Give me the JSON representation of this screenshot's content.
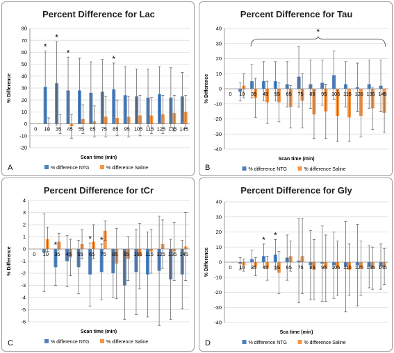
{
  "colors": {
    "ntg": "#4f81bd",
    "saline": "#f79646",
    "grid": "#d9d9d9",
    "axis": "#808080",
    "error_bar": "#595959"
  },
  "chart_data": [
    {
      "panel": "A",
      "type": "bar",
      "title": "Percent Difference for Lac",
      "xlabel": "Scan time (min)",
      "ylabel": "% Difference",
      "ylim": [
        -20,
        80
      ],
      "yticks": [
        -20,
        -10,
        0,
        10,
        20,
        30,
        40,
        50,
        60,
        70,
        80
      ],
      "grid": true,
      "legend_position": "bottom",
      "categories": [
        "0",
        "10",
        "35",
        "45",
        "55",
        "65",
        "75",
        "85",
        "95",
        "105",
        "115",
        "125",
        "135",
        "145"
      ],
      "series": [
        {
          "name": "% difference NTG",
          "values": [
            null,
            31,
            34,
            28,
            28,
            26,
            27,
            29,
            24,
            23,
            22,
            25,
            22,
            23
          ],
          "errors": [
            null,
            30,
            35,
            28,
            27,
            26,
            27,
            22,
            24,
            23,
            24,
            23,
            25,
            20
          ]
        },
        {
          "name": "% difference Saline",
          "values": [
            null,
            0,
            0,
            -2,
            4,
            2,
            6,
            5,
            6,
            7,
            7,
            8,
            9,
            10
          ],
          "errors": [
            null,
            5,
            8,
            10,
            12,
            13,
            17,
            15,
            17,
            17,
            15,
            16,
            15,
            14
          ]
        }
      ],
      "significance": [
        "10",
        "35",
        "45",
        "85"
      ]
    },
    {
      "panel": "B",
      "type": "bar",
      "title": "Percent Difference for Tau",
      "xlabel": "Scan time (min)",
      "ylabel": "% Difference",
      "ylim": [
        -40,
        40
      ],
      "yticks": [
        -40,
        -30,
        -20,
        -10,
        0,
        10,
        20,
        30,
        40
      ],
      "grid": true,
      "legend_position": "bottom",
      "categories": [
        "0",
        "10",
        "35",
        "45",
        "55",
        "65",
        "75",
        "85",
        "95",
        "105",
        "115",
        "125",
        "135",
        "145"
      ],
      "series": [
        {
          "name": "% difference NTG",
          "values": [
            null,
            -2,
            5,
            5,
            5,
            3,
            8,
            3,
            4,
            9,
            3,
            1,
            3,
            2
          ],
          "errors": [
            null,
            6,
            11,
            13,
            13,
            15,
            20,
            16,
            15,
            16,
            15,
            16,
            16,
            17
          ]
        },
        {
          "name": "% difference Saline",
          "values": [
            null,
            2,
            -6,
            -9,
            -9,
            -12,
            -8,
            -17,
            -15,
            -18,
            -19,
            -18,
            -13,
            -16
          ],
          "errors": [
            null,
            8,
            13,
            14,
            13,
            14,
            18,
            16,
            18,
            17,
            16,
            14,
            14,
            13
          ]
        }
      ],
      "bracket_span": [
        "35",
        "145"
      ],
      "significance_label": "*"
    },
    {
      "panel": "C",
      "type": "bar",
      "title": "Percent Difference for tCr",
      "xlabel": "Scan time (min)",
      "ylabel": "% Difference",
      "ylim": [
        -6,
        4
      ],
      "yticks": [
        -6,
        -5,
        -4,
        -3,
        -2,
        -1,
        0,
        1,
        2,
        3,
        4
      ],
      "grid": true,
      "legend_position": "bottom",
      "categories": [
        "0",
        "10",
        "35",
        "45",
        "55",
        "65",
        "75",
        "85",
        "95",
        "105",
        "115",
        "125",
        "135",
        "145"
      ],
      "series": [
        {
          "name": "% difference NTG",
          "values": [
            null,
            -0.3,
            -1.5,
            -1.0,
            -1.5,
            -2.1,
            -1.9,
            -2.0,
            -3.0,
            -1.9,
            -2.1,
            -1.8,
            -2.5,
            -2.1
          ],
          "errors": [
            null,
            3.2,
            1.5,
            2.1,
            2.2,
            2.6,
            2.3,
            2.0,
            2.8,
            3.5,
            3.5,
            4.5,
            3.3,
            2.8
          ]
        },
        {
          "name": "% difference Saline",
          "values": [
            null,
            0.8,
            0.6,
            -0.7,
            0.4,
            0.6,
            1.5,
            -1.2,
            -0.8,
            -0.6,
            -0.2,
            0.4,
            -0.2,
            0.2
          ],
          "errors": [
            null,
            1.0,
            0.7,
            1.5,
            1.2,
            1.4,
            0.8,
            2.9,
            1.8,
            2.7,
            1.8,
            2.0,
            2.4,
            2.8
          ]
        }
      ],
      "significance": [
        "35",
        "65",
        "75"
      ]
    },
    {
      "panel": "D",
      "type": "bar",
      "title": "Percent Difference for Gly",
      "xlabel": "Sca time (min)",
      "ylabel": "% Difference",
      "ylim": [
        -40,
        40
      ],
      "yticks": [
        -40,
        -30,
        -20,
        -10,
        0,
        10,
        20,
        30,
        40
      ],
      "grid": true,
      "legend_position": "bottom",
      "categories": [
        "0",
        "10",
        "35",
        "45",
        "55",
        "65",
        "75",
        "85",
        "95",
        "105",
        "115",
        "125",
        "135",
        "145"
      ],
      "series": [
        {
          "name": "% difference NTG",
          "values": [
            null,
            -1,
            2,
            4,
            5,
            3,
            1,
            -2,
            -1,
            -2,
            -3,
            -2,
            -3,
            -3
          ],
          "errors": [
            null,
            4,
            6,
            8,
            10,
            15,
            28,
            23,
            25,
            22,
            30,
            27,
            14,
            15
          ]
        },
        {
          "name": "% difference Saline",
          "values": [
            null,
            -2,
            -3,
            -4,
            -7,
            4,
            4,
            -5,
            -4,
            -4,
            -5,
            -4,
            -4,
            -3
          ],
          "errors": [
            null,
            4,
            6,
            8,
            14,
            10,
            25,
            20,
            22,
            18,
            17,
            18,
            14,
            12
          ]
        }
      ],
      "significance": [
        "45",
        "55"
      ]
    }
  ]
}
